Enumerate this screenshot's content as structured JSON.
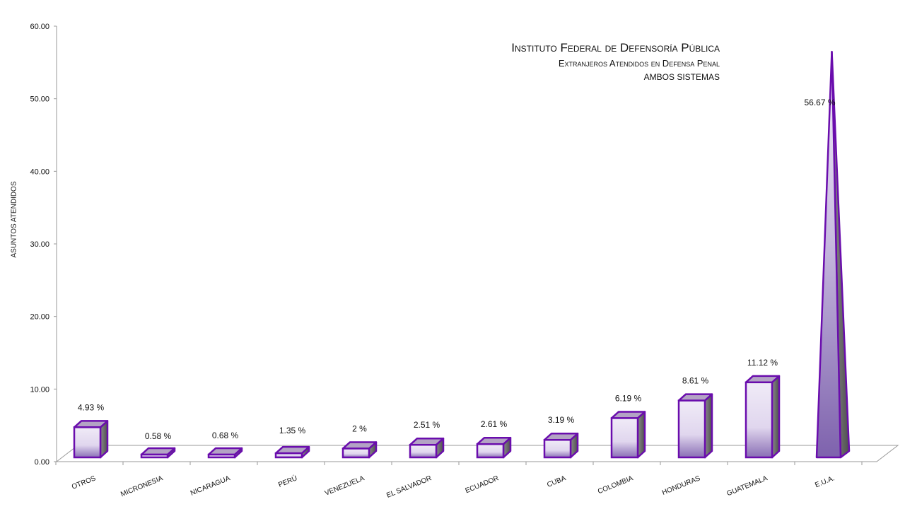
{
  "chart_data": {
    "type": "bar",
    "title": "Instituto Federal de Defensoría Pública",
    "subtitle": "Extranjeros Atendidos en Defensa Penal",
    "subtitle2": "AMBOS SISTEMAS",
    "ylabel": "ASUNTOS ATENDIDOS",
    "xlabel": "",
    "ylim": [
      0,
      60
    ],
    "yticks": [
      "0.00",
      "10.00",
      "20.00",
      "30.00",
      "40.00",
      "50.00",
      "60.00"
    ],
    "categories": [
      "OTROS",
      "MICRONESIA",
      "NICARAGUA",
      "PERÚ",
      "VENEZUELA",
      "EL SALVADOR",
      "ECUADOR",
      "CUBA",
      "COLOMBIA",
      "HONDURAS",
      "GUATEMALA",
      "E.U.A."
    ],
    "values": [
      4.93,
      0.58,
      0.68,
      1.35,
      2,
      2.51,
      2.61,
      3.19,
      6.19,
      8.61,
      11.12,
      56.67
    ],
    "data_labels": [
      "4.93",
      "0.58",
      "0.68",
      "1.35",
      "2",
      "2.51",
      "2.61",
      "3.19",
      "6.19",
      "8.61",
      "11.12",
      "56.67"
    ],
    "data_label_suffix": "%",
    "last_bar_shape": "pyramid",
    "grid": false,
    "legend": "none",
    "colors": {
      "bar_outline": "#6a0dad",
      "bar_top": "#b3a3c4",
      "bar_side": "#777777",
      "bar_front_light": "#f0ebf7",
      "bar_front_dark": "#8a6fb5",
      "axis": "#9a9a9a"
    }
  }
}
